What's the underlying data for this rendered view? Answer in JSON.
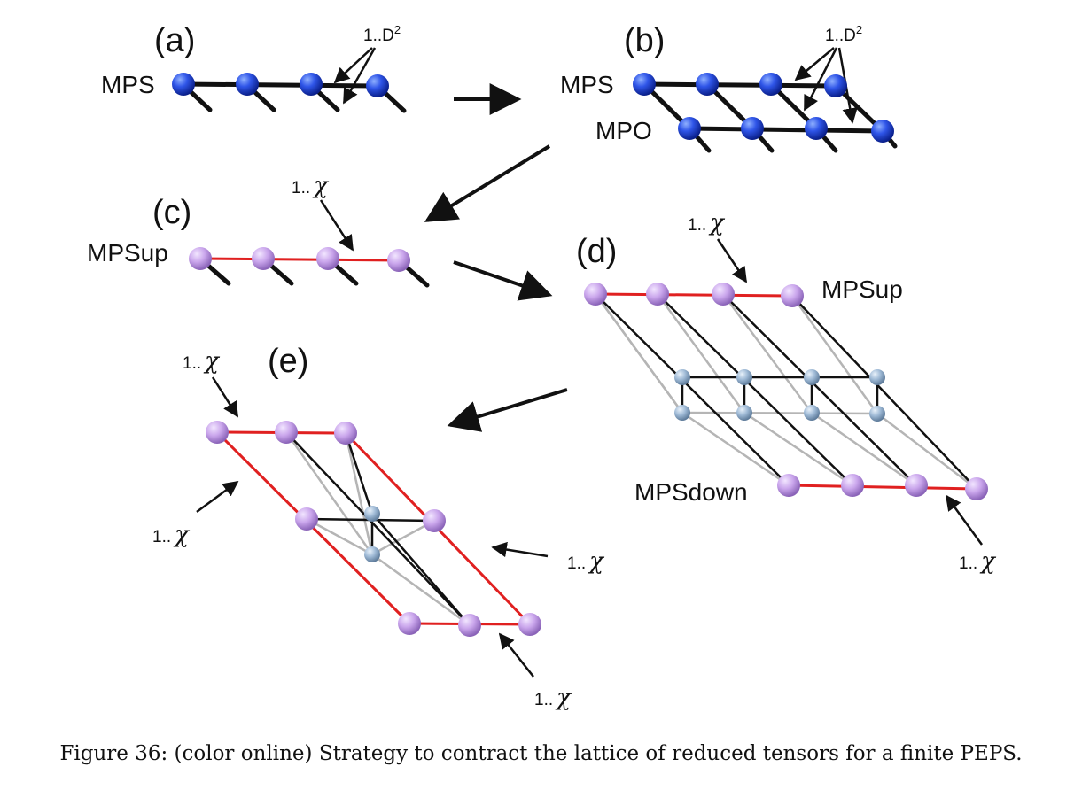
{
  "panels": {
    "a": {
      "label": "(a)",
      "name": "MPS",
      "index": "1..D",
      "index_sup": "2"
    },
    "b": {
      "label": "(b)",
      "name_top": "MPS",
      "name_bottom": "MPO",
      "index": "1..D",
      "index_sup": "2"
    },
    "c": {
      "label": "(c)",
      "name": "MPSup",
      "index_prefix": "1..",
      "index_symbol": "χ"
    },
    "d": {
      "label": "(d)",
      "name_top": "MPSup",
      "name_bottom": "MPSdown",
      "index_prefix": "1..",
      "index_symbol": "χ"
    },
    "e": {
      "label": "(e)",
      "index_prefix": "1..",
      "index_symbol": "χ"
    }
  },
  "caption": "Figure 36: (color online) Strategy to contract the lattice of reduced tensors for a finite PEPS.",
  "colors": {
    "mps_node": "#2b4fe0",
    "chi_node": "#c9a8e8",
    "tensor_node": "#9db8d4",
    "bond": "#111111",
    "chi_bond": "#e02020",
    "faint_bond": "#b0b0b0"
  }
}
